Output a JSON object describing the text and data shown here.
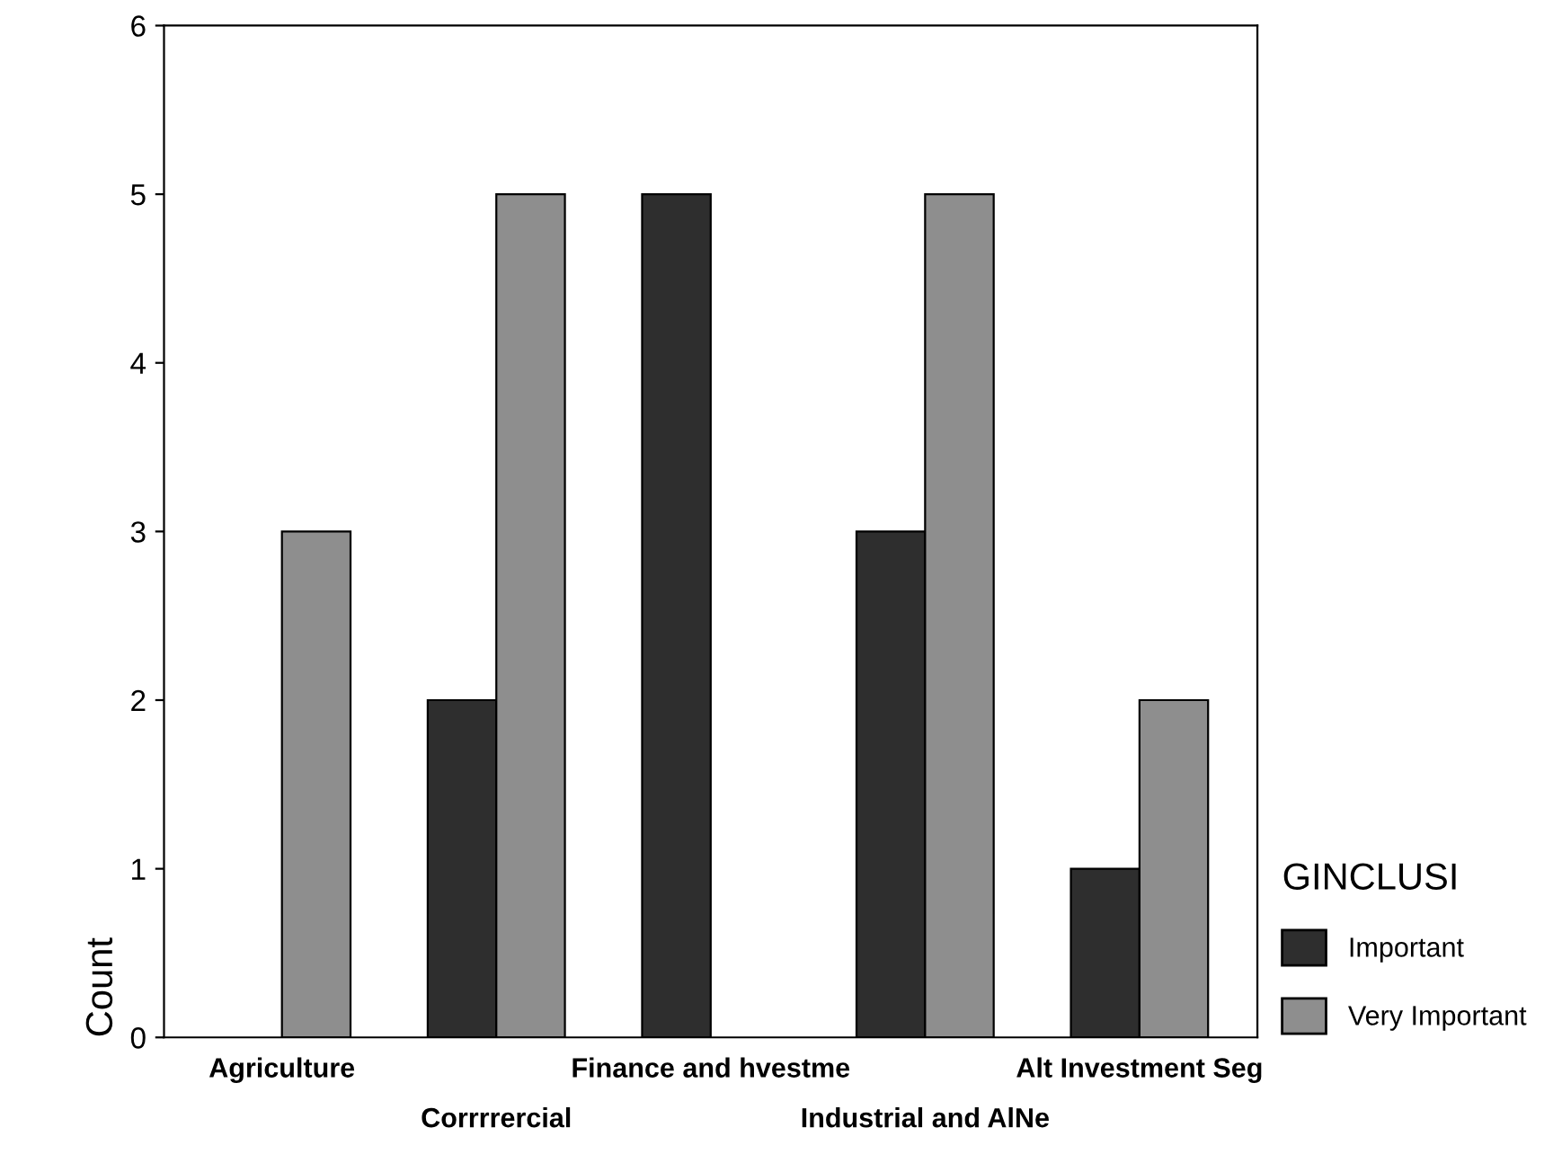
{
  "chart_data": {
    "type": "bar",
    "ylabel": "Count",
    "legend_title": "GINCLUSI",
    "legend": "right",
    "categories": [
      "Agriculture",
      "Corrrrercial",
      "Finance and hvestme",
      "Industrial and AlNe",
      "Alt Investment Seg"
    ],
    "series": [
      {
        "name": "Important",
        "color": "#2e2e2e",
        "values": [
          null,
          2,
          5,
          3,
          1
        ]
      },
      {
        "name": "Very Important",
        "color": "#8e8e8e",
        "values": [
          3,
          5,
          null,
          5,
          2
        ]
      }
    ],
    "ylim": [
      0,
      6
    ],
    "yticks": [
      0,
      1,
      2,
      3,
      4,
      5,
      6
    ],
    "grid": false
  }
}
